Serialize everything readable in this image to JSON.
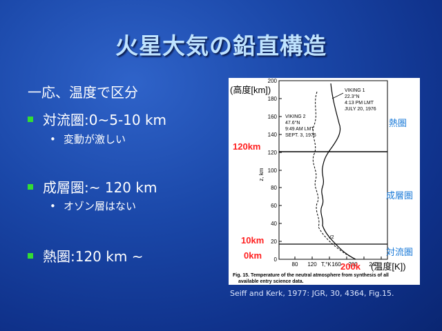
{
  "title": "火星大気の鉛直構造",
  "intro": "一応、温度で区分",
  "sections": [
    {
      "bullet": "対流圏:0~5-10 km",
      "sub": "変動が激しい"
    },
    {
      "bullet": "成層圏:~ 120 km",
      "sub": "オゾン層はない"
    },
    {
      "bullet": "熱圏:120 km ~"
    }
  ],
  "figure": {
    "y_axis_label": "z, km",
    "y_ticks": [
      "200",
      "180",
      "160",
      "140",
      "120",
      "100",
      "80",
      "60",
      "40",
      "20",
      "0"
    ],
    "x_ticks": [
      "80",
      "120",
      "160",
      "200",
      "240"
    ],
    "x_axis_label": "T,°K",
    "viking1": [
      "VIKING 1",
      "22.3°N",
      "4:13 PM LMT",
      "JULY 20, 1976"
    ],
    "viking2": [
      "VIKING 2",
      "47.6°N",
      "9:49 AM LMT",
      "SEPT. 3, 1976"
    ],
    "v2_label": "V2",
    "caption_text": [
      "Fig. 15.   Temperature of the neutral atmosphere from synthesis of all",
      "available entry science data."
    ],
    "annot_altitude": "(高度[km])",
    "annot_thermo": "熱圏",
    "annot_strato": "成層圏",
    "annot_tropo": "対流圏",
    "annot_120": "120km",
    "annot_10": "10km",
    "annot_0": "0km",
    "annot_200k": "200k",
    "annot_temp": "(温度[K])"
  },
  "citation": "Seiff and Kerk, 1977: JGR, 30, 4364, Fig.15.",
  "colors": {
    "bullet": "#33dd33",
    "red_annot": "#ff2020",
    "blue_annot": "#1a7ad8",
    "title": "#bfe3ff"
  }
}
